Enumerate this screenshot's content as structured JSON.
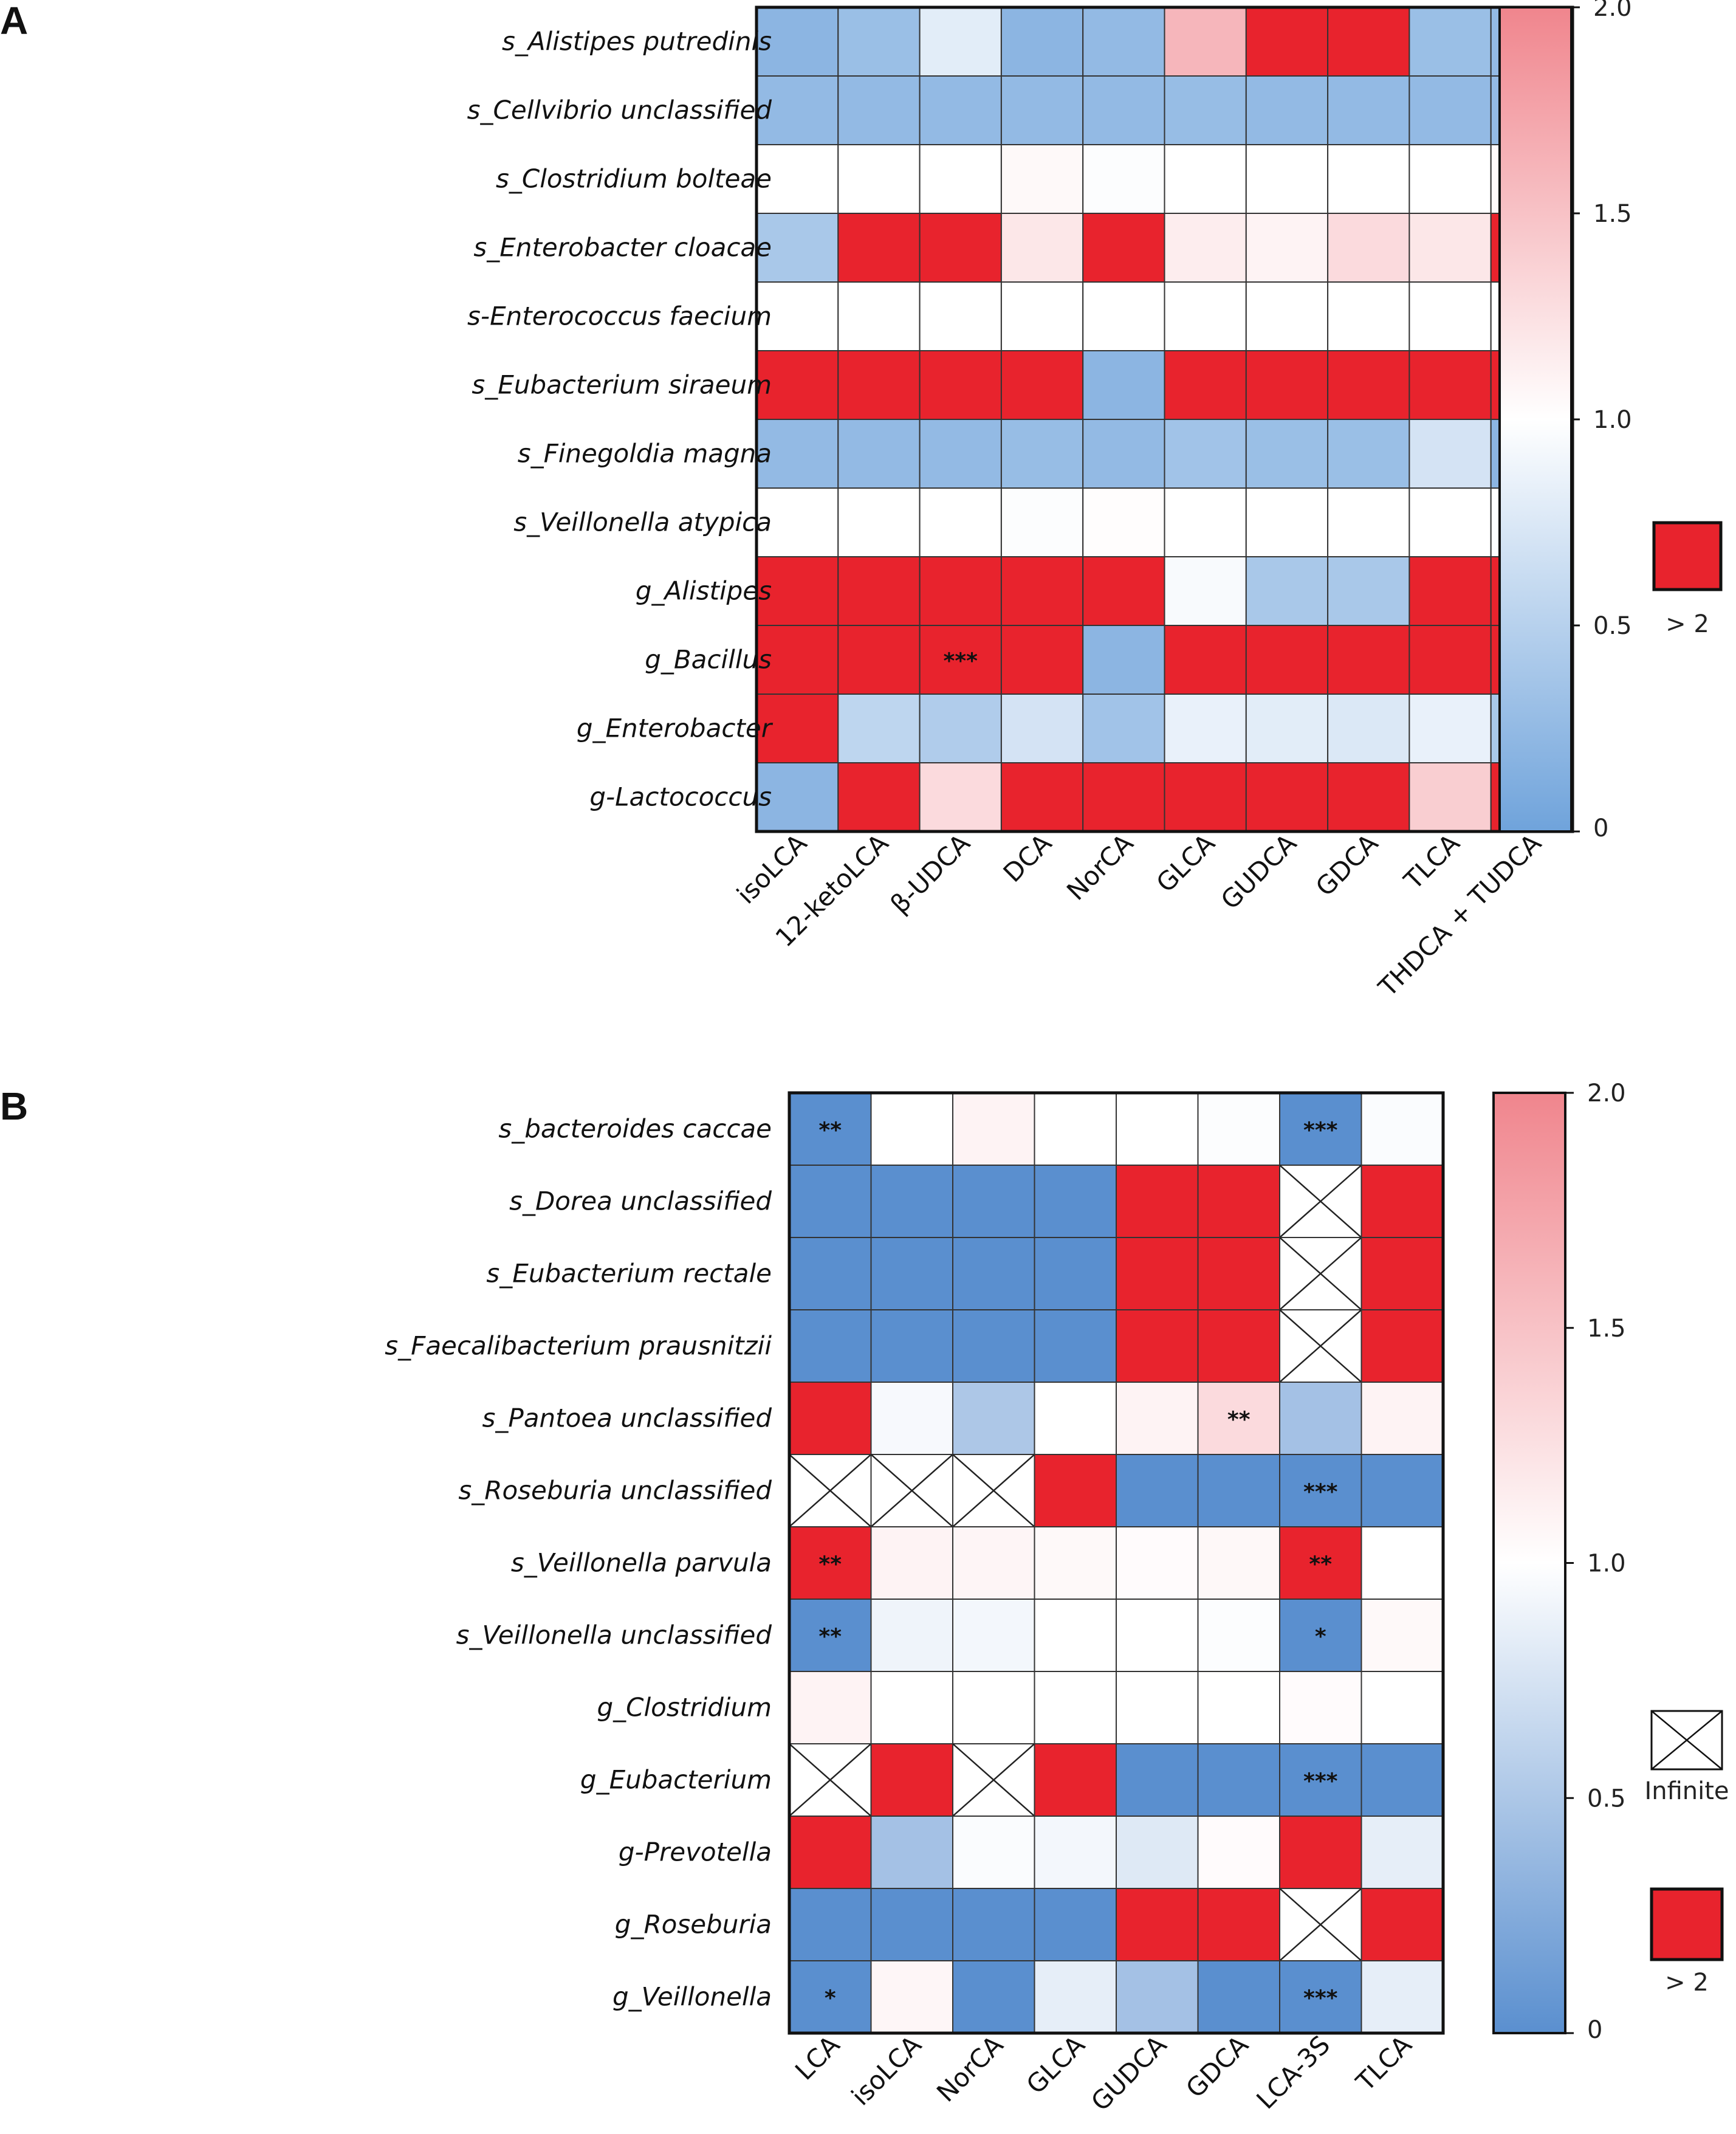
{
  "panels": [
    {
      "letter": "A",
      "legend": {
        "red_label": "> 2"
      },
      "colorbar": {
        "ticks": [
          "0",
          "0.5",
          "1.0",
          "1.5",
          "2.0"
        ]
      }
    },
    {
      "letter": "B",
      "legend": {
        "infinite_label": "Infinite",
        "red_label": "> 2"
      },
      "colorbar": {
        "ticks": [
          "0",
          "0.5",
          "1.0",
          "1.5",
          "2.0"
        ]
      }
    }
  ],
  "colors": {
    "blue": "#6fa3db",
    "blue_b": "#5a8fcf",
    "white": "#ffffff",
    "pink": "#f0858d",
    "red": "#e8232d",
    "grid": "#333333"
  },
  "chart_data": [
    {
      "type": "heatmap",
      "title": "",
      "rows": [
        "s_Alistipes putredinis",
        "s_Cellvibrio unclassified",
        "s_Clostridium bolteae",
        "s_Enterobacter cloacae",
        "s-Enterococcus faecium",
        "s_Eubacterium siraeum",
        "s_Finegoldia magna",
        "s_Veillonella atypica",
        "g_Alistipes",
        "g_Bacillus",
        "g_Enterobacter",
        "g-Lactococcus"
      ],
      "columns": [
        "isoLCA",
        "12-ketoLCA",
        "β-UDCA",
        "DCA",
        "NorCA",
        "GLCA",
        "GUDCA",
        "GDCA",
        "TLCA",
        "THDCA + TUDCA"
      ],
      "values": [
        [
          0.2,
          0.3,
          0.8,
          0.2,
          0.25,
          1.6,
          3,
          3,
          0.3,
          0.25
        ],
        [
          0.25,
          0.25,
          0.25,
          0.25,
          0.25,
          0.28,
          0.25,
          0.25,
          0.25,
          0.25
        ],
        [
          1.0,
          1.0,
          1.0,
          1.05,
          0.98,
          1.0,
          1.0,
          1.0,
          1.0,
          1.03
        ],
        [
          0.4,
          3,
          3,
          1.2,
          3,
          1.15,
          1.1,
          1.3,
          1.2,
          3
        ],
        [
          1.0,
          1.0,
          1.0,
          1.0,
          1.0,
          1.0,
          1.0,
          1.0,
          1.0,
          1.0
        ],
        [
          3,
          3,
          3,
          3,
          0.2,
          3,
          3,
          3,
          3,
          3
        ],
        [
          0.25,
          0.25,
          0.25,
          0.28,
          0.25,
          0.35,
          0.3,
          0.3,
          0.7,
          0.2
        ],
        [
          1.0,
          1.0,
          1.0,
          0.98,
          1.02,
          1.0,
          1.0,
          1.0,
          1.0,
          0.99
        ],
        [
          3,
          3,
          3,
          3,
          3,
          0.95,
          0.4,
          0.4,
          3,
          3
        ],
        [
          3,
          3,
          3,
          3,
          0.2,
          3,
          3,
          3,
          3,
          3
        ],
        [
          3,
          0.55,
          0.45,
          0.7,
          0.35,
          0.85,
          0.8,
          0.75,
          0.85,
          0.4
        ],
        [
          0.2,
          3,
          1.3,
          3,
          3,
          3,
          3,
          3,
          1.4,
          3
        ]
      ],
      "annotations": [
        {
          "row": 9,
          "col": 2,
          "text": "***"
        }
      ],
      "colorbar": {
        "min": 0,
        "max": 2,
        "ticks": [
          0,
          0.5,
          1.0,
          1.5,
          2.0
        ]
      }
    },
    {
      "type": "heatmap",
      "title": "",
      "rows": [
        "s_bacteroides caccae",
        "s_Dorea unclassified",
        "s_Eubacterium rectale",
        "s_Faecalibacterium prausnitzii",
        "s_Pantoea unclassified",
        "s_Roseburia unclassified",
        "s_Veillonella parvula",
        "s_Veillonella unclassified",
        "g_Clostridium",
        "g_Eubacterium",
        "g-Prevotella",
        "g_Roseburia",
        "g_Veillonella"
      ],
      "columns": [
        "LCA",
        "isoLCA",
        "NorCA",
        "GLCA",
        "GUDCA",
        "GDCA",
        "LCA-3S",
        "TLCA"
      ],
      "values": [
        [
          0.0,
          1.0,
          1.1,
          1.0,
          1.0,
          0.98,
          0.0,
          0.97
        ],
        [
          0.0,
          0.0,
          0.0,
          0.0,
          3,
          3,
          "inf",
          3
        ],
        [
          0.0,
          0.0,
          0.0,
          0.0,
          3,
          3,
          "inf",
          3
        ],
        [
          0.0,
          0.0,
          0.0,
          0.0,
          3,
          3,
          "inf",
          3
        ],
        [
          3,
          0.95,
          0.5,
          1.0,
          1.1,
          1.3,
          0.45,
          1.1
        ],
        [
          "inf",
          "inf",
          "inf",
          3,
          0.0,
          0.0,
          0.0,
          0.0
        ],
        [
          3,
          1.1,
          1.08,
          1.05,
          1.03,
          1.06,
          3,
          1.0
        ],
        [
          0.0,
          0.9,
          0.93,
          1.0,
          1.0,
          0.98,
          0.0,
          1.05
        ],
        [
          1.1,
          1.0,
          1.0,
          1.0,
          1.0,
          1.0,
          1.03,
          1.0
        ],
        [
          "inf",
          3,
          "inf",
          3,
          0.0,
          0.0,
          0.0,
          0.0
        ],
        [
          3,
          0.45,
          0.97,
          0.93,
          0.8,
          1.03,
          3,
          0.85
        ],
        [
          0.0,
          0.0,
          0.0,
          0.0,
          3,
          3,
          "inf",
          3
        ],
        [
          0.0,
          1.07,
          0.0,
          0.85,
          0.45,
          0.0,
          0.0,
          0.85
        ]
      ],
      "annotations": [
        {
          "row": 0,
          "col": 0,
          "text": "**"
        },
        {
          "row": 0,
          "col": 6,
          "text": "***"
        },
        {
          "row": 4,
          "col": 5,
          "text": "**"
        },
        {
          "row": 5,
          "col": 6,
          "text": "***"
        },
        {
          "row": 6,
          "col": 0,
          "text": "**"
        },
        {
          "row": 6,
          "col": 6,
          "text": "**"
        },
        {
          "row": 7,
          "col": 0,
          "text": "**"
        },
        {
          "row": 7,
          "col": 6,
          "text": "*"
        },
        {
          "row": 9,
          "col": 6,
          "text": "***"
        },
        {
          "row": 12,
          "col": 0,
          "text": "*"
        },
        {
          "row": 12,
          "col": 6,
          "text": "***"
        }
      ],
      "colorbar": {
        "min": 0,
        "max": 2,
        "ticks": [
          0,
          0.5,
          1.0,
          1.5,
          2.0
        ]
      }
    }
  ]
}
